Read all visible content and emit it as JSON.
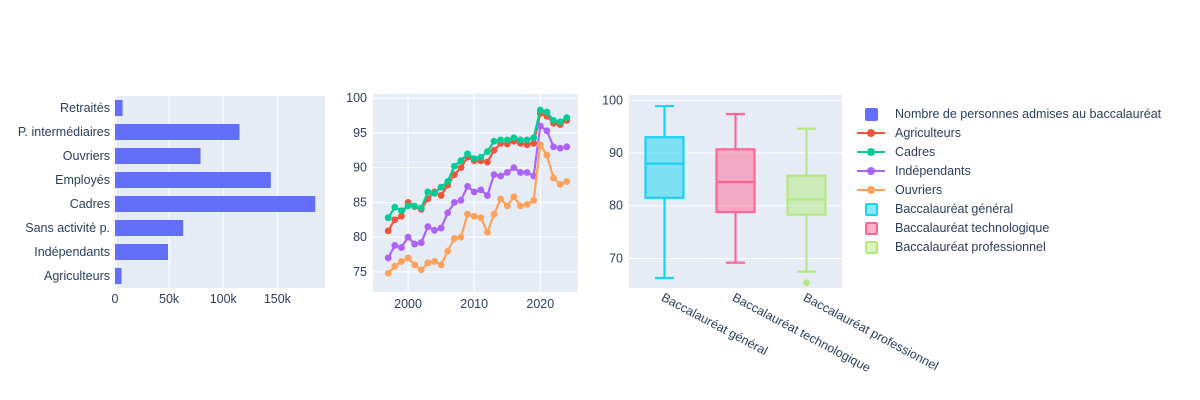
{
  "colors": {
    "paper_bg": "#ffffff",
    "plot_bg": "#e5ecf6",
    "grid": "#ffffff",
    "font": "#2a3f5f",
    "bar_blue": "#636EFA"
  },
  "legend": {
    "items": [
      {
        "label": "Nombre de personnes admises au baccalauréat",
        "symbol": "bar-swatch",
        "color": "#636EFA"
      },
      {
        "label": "Agriculteurs",
        "symbol": "line-swatch",
        "color": "#EF553B"
      },
      {
        "label": "Cadres",
        "symbol": "line-swatch",
        "color": "#00CC96"
      },
      {
        "label": "Indépendants",
        "symbol": "line-swatch",
        "color": "#AB63FA"
      },
      {
        "label": "Ouvriers",
        "symbol": "line-swatch",
        "color": "#FFA15A"
      },
      {
        "label": "Baccalauréat général",
        "symbol": "box-swatch",
        "color": "#19D3F3"
      },
      {
        "label": "Baccalauréat technologique",
        "symbol": "box-swatch",
        "color": "#FF6692"
      },
      {
        "label": "Baccalauréat professionnel",
        "symbol": "box-swatch",
        "color": "#B6E880"
      }
    ]
  },
  "chart_data": [
    {
      "type": "bar",
      "orientation": "horizontal",
      "name": "Nombre de personnes admises au baccalauréat",
      "color": "#636EFA",
      "categories": [
        "Retraités",
        "P. intermédiaires",
        "Ouvriers",
        "Employés",
        "Cadres",
        "Sans activité p.",
        "Indépendants",
        "Agriculteurs"
      ],
      "values": [
        7000,
        115000,
        79000,
        144000,
        185000,
        63000,
        49000,
        6000
      ],
      "xlim": [
        0,
        194000
      ],
      "xtick_values": [
        0,
        50000,
        100000,
        150000
      ],
      "xtick_labels": [
        "0",
        "50k",
        "100k",
        "150k"
      ],
      "grid": true
    },
    {
      "type": "line",
      "title": "",
      "x": [
        1997,
        1998,
        1999,
        2000,
        2001,
        2002,
        2003,
        2004,
        2005,
        2006,
        2007,
        2008,
        2009,
        2010,
        2011,
        2012,
        2013,
        2014,
        2015,
        2016,
        2017,
        2018,
        2019,
        2020,
        2021,
        2022,
        2023,
        2024
      ],
      "series": [
        {
          "name": "Agriculteurs",
          "color": "#EF553B",
          "values": [
            80.9,
            82.5,
            83.0,
            85.0,
            84.4,
            84.0,
            85.5,
            86.5,
            86.0,
            87.5,
            89.0,
            90.0,
            91.5,
            91.0,
            91.0,
            90.8,
            92.5,
            93.5,
            93.4,
            93.8,
            93.5,
            93.3,
            93.5,
            97.8,
            97.4,
            96.4,
            96.2,
            96.8
          ]
        },
        {
          "name": "Cadres",
          "color": "#00CC96",
          "values": [
            82.8,
            84.3,
            83.8,
            84.5,
            84.5,
            84.2,
            86.5,
            86.3,
            87.2,
            88.0,
            90.2,
            91.0,
            92.0,
            91.3,
            91.5,
            92.3,
            93.8,
            94.0,
            94.0,
            94.3,
            94.0,
            94.0,
            94.3,
            98.3,
            98.0,
            96.8,
            96.6,
            97.2
          ]
        },
        {
          "name": "Indépendants",
          "color": "#AB63FA",
          "values": [
            77.0,
            78.8,
            78.5,
            80.0,
            79.0,
            79.2,
            81.5,
            81.0,
            81.3,
            83.5,
            85.0,
            85.3,
            87.3,
            86.5,
            86.8,
            86.0,
            89.0,
            88.8,
            89.3,
            90.0,
            89.3,
            89.3,
            88.8,
            96.0,
            95.3,
            93.0,
            92.8,
            93.0
          ]
        },
        {
          "name": "Ouvriers",
          "color": "#FFA15A",
          "values": [
            74.8,
            75.8,
            76.5,
            77.0,
            76.0,
            75.3,
            76.3,
            76.5,
            76.0,
            78.0,
            79.8,
            80.0,
            83.3,
            83.0,
            82.8,
            80.7,
            83.3,
            85.5,
            84.5,
            85.8,
            84.5,
            84.7,
            85.3,
            93.3,
            91.8,
            88.5,
            87.6,
            88.0
          ]
        }
      ],
      "xlim": [
        1994.7,
        2025.7
      ],
      "ylim": [
        72.1,
        100.6
      ],
      "xtick_values": [
        2000,
        2010,
        2020
      ],
      "xtick_labels": [
        "2000",
        "2010",
        "2020"
      ],
      "ytick_values": [
        75,
        80,
        85,
        90,
        95,
        100
      ],
      "ytick_labels": [
        "75",
        "80",
        "85",
        "90",
        "95",
        "100"
      ],
      "grid": true
    },
    {
      "type": "box",
      "categories": [
        "Baccalauréat général",
        "Baccalauréat technologique",
        "Baccalauréat professionnel"
      ],
      "boxes": [
        {
          "name": "Baccalauréat général",
          "color": "#19D3F3",
          "min": 66.3,
          "q1": 81.5,
          "median": 88.0,
          "q3": 93.0,
          "max": 98.9,
          "outliers": []
        },
        {
          "name": "Baccalauréat technologique",
          "color": "#FF6692",
          "min": 69.2,
          "q1": 78.8,
          "median": 84.5,
          "q3": 90.7,
          "max": 97.4,
          "outliers": []
        },
        {
          "name": "Baccalauréat professionnel",
          "color": "#B6E880",
          "min": 67.5,
          "q1": 78.3,
          "median": 81.2,
          "q3": 85.7,
          "max": 94.6,
          "outliers": [
            65.4
          ]
        }
      ],
      "ylim": [
        64.4,
        101.0
      ],
      "ytick_values": [
        70,
        80,
        90,
        100
      ],
      "ytick_labels": [
        "70",
        "80",
        "90",
        "100"
      ],
      "xtick_angle_deg": 28,
      "grid": true
    }
  ]
}
